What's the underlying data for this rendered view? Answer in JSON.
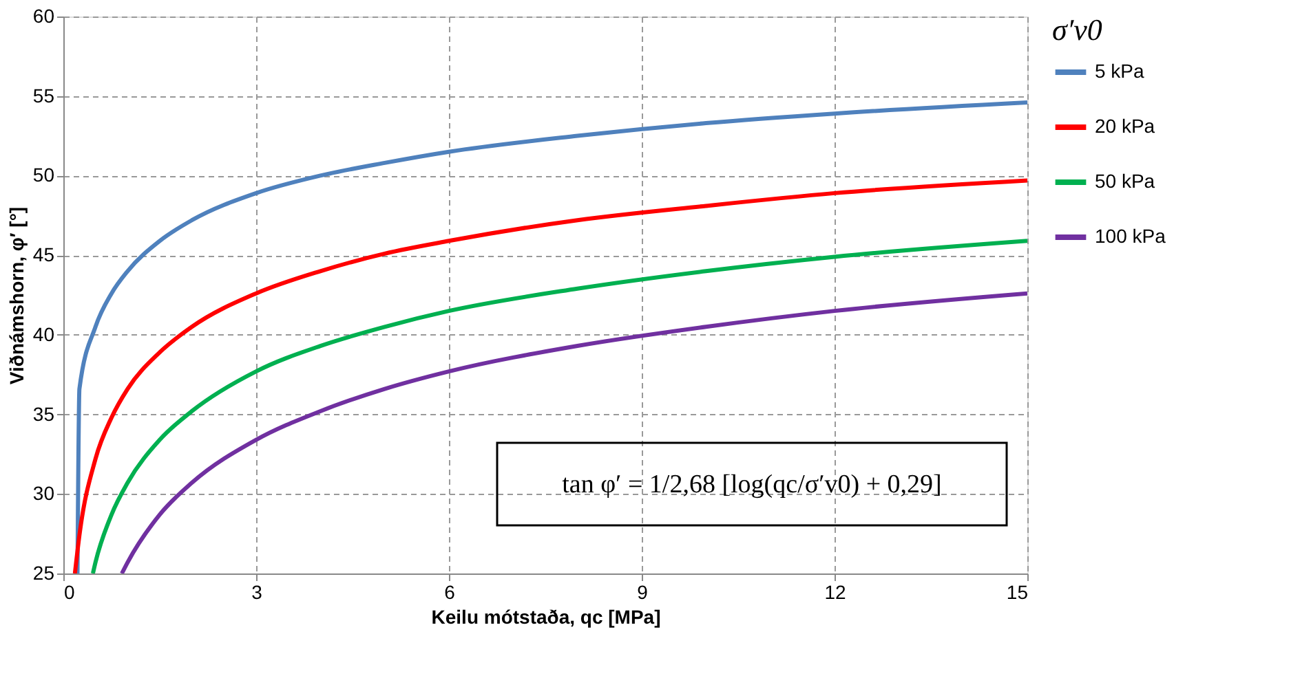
{
  "chart_data": {
    "type": "line",
    "xlabel": "Keilu mótstaða, qc [MPa]",
    "ylabel": "Viðnámshorn, φ′ [°]",
    "legend_title": "σ′v0",
    "xlim": [
      0,
      15
    ],
    "xticks": [
      0,
      3,
      6,
      9,
      12,
      15
    ],
    "ylim": [
      25,
      60
    ],
    "yticks": [
      25,
      30,
      35,
      40,
      45,
      50,
      55,
      60
    ],
    "grid": true,
    "legend": "right",
    "line_style": "solid",
    "marker": "none",
    "series": [
      {
        "name": "5 kPa",
        "color": "#4f81bd",
        "x": [
          0.22,
          0.25,
          0.5,
          0.75,
          1,
          1.5,
          2,
          3,
          4,
          5,
          6,
          8,
          10,
          12,
          15
        ],
        "values": [
          25,
          36.6,
          40.5,
          42.6,
          44.0,
          45.9,
          47.2,
          48.9,
          50.0,
          50.8,
          51.5,
          52.5,
          53.3,
          53.9,
          54.6
        ]
      },
      {
        "name": "20 kPa",
        "color": "#ff0000",
        "x": [
          0.18,
          0.25,
          0.5,
          0.75,
          1,
          1.5,
          2,
          3,
          4,
          5,
          6,
          8,
          10,
          12,
          15
        ],
        "values": [
          25,
          27.4,
          32.2,
          34.8,
          36.6,
          38.9,
          40.5,
          42.6,
          44.0,
          45.1,
          45.9,
          47.2,
          48.1,
          48.9,
          49.7
        ]
      },
      {
        "name": "50 kPa",
        "color": "#00b050",
        "x": [
          0.46,
          0.5,
          0.75,
          1,
          1.5,
          2,
          3,
          4,
          5,
          6,
          8,
          10,
          12,
          15
        ],
        "values": [
          25,
          25.7,
          28.7,
          30.7,
          33.4,
          35.2,
          37.7,
          39.3,
          40.5,
          41.5,
          42.9,
          44.0,
          44.9,
          45.9
        ]
      },
      {
        "name": "100 kPa",
        "color": "#7030a0",
        "x": [
          0.91,
          1,
          1.5,
          2,
          3,
          4,
          5,
          6,
          8,
          10,
          12,
          15
        ],
        "values": [
          25,
          25.7,
          28.7,
          30.7,
          33.4,
          35.2,
          36.6,
          37.7,
          39.3,
          40.5,
          41.5,
          42.6
        ]
      }
    ],
    "annotations": [
      "tan φ′ = 1/2,68 [log(qc/σ′v0) + 0,29]"
    ]
  }
}
